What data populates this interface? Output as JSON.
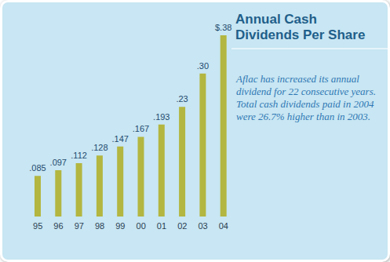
{
  "chart_data": {
    "type": "bar",
    "title": "Annual Cash Dividends Per Share",
    "annotation": "Aflac has increased its annual dividend for 22 consecutive years. Total cash dividends paid in 2004 were 26.7% higher than in 2003.",
    "categories": [
      "95",
      "96",
      "97",
      "98",
      "99",
      "00",
      "01",
      "02",
      "03",
      "04"
    ],
    "values": [
      0.085,
      0.097,
      0.112,
      0.128,
      0.147,
      0.167,
      0.193,
      0.23,
      0.3,
      0.38
    ],
    "value_labels": [
      ".085",
      ".097",
      ".112",
      ".128",
      ".147",
      ".167",
      ".193",
      ".23",
      ".30",
      "$.38"
    ],
    "color": "#b3b640",
    "data_labels": true,
    "tick_labels": "x"
  }
}
